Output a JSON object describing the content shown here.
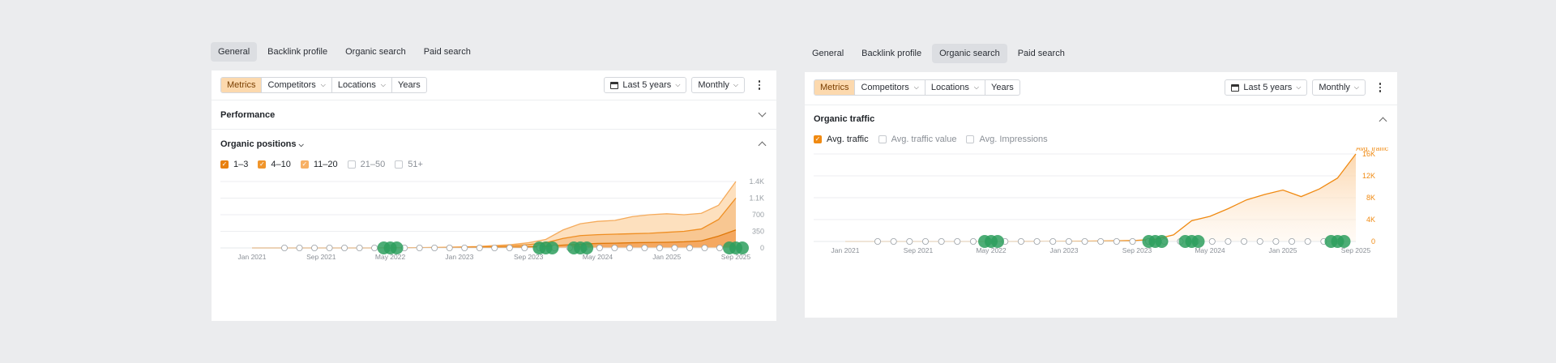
{
  "left": {
    "tabs": [
      "General",
      "Backlink profile",
      "Organic search",
      "Paid search"
    ],
    "active_tab": 0,
    "toolbar": {
      "segments": [
        "Metrics",
        "Competitors",
        "Locations",
        "Years"
      ],
      "period": "Last 5 years",
      "granularity": "Monthly"
    },
    "sections": {
      "performance": "Performance",
      "organic_positions": "Organic positions"
    },
    "legend": [
      {
        "label": "1–3",
        "checked": true,
        "color": "#e8800f"
      },
      {
        "label": "4–10",
        "checked": true,
        "color": "#f0952b"
      },
      {
        "label": "11–20",
        "checked": true,
        "color": "#f7b064"
      },
      {
        "label": "21–50",
        "checked": false,
        "color": ""
      },
      {
        "label": "51+",
        "checked": false,
        "color": ""
      }
    ]
  },
  "right": {
    "tabs": [
      "General",
      "Backlink profile",
      "Organic search",
      "Paid search"
    ],
    "active_tab": 2,
    "toolbar": {
      "segments": [
        "Metrics",
        "Competitors",
        "Locations",
        "Years"
      ],
      "period": "Last 5 years",
      "granularity": "Monthly"
    },
    "sections": {
      "organic_traffic": "Organic traffic"
    },
    "legend": [
      {
        "label": "Avg. traffic",
        "checked": true,
        "color": "#f08a12"
      },
      {
        "label": "Avg. traffic value",
        "checked": false,
        "color": ""
      },
      {
        "label": "Avg. Impressions",
        "checked": false,
        "color": ""
      }
    ]
  },
  "chart_data": [
    {
      "type": "area",
      "title": "",
      "x": [
        "Jan 2021",
        "Mar 2021",
        "May 2021",
        "Jul 2021",
        "Sep 2021",
        "Nov 2021",
        "Jan 2022",
        "Mar 2022",
        "May 2022",
        "Jul 2022",
        "Sep 2022",
        "Nov 2022",
        "Jan 2023",
        "Mar 2023",
        "May 2023",
        "Jul 2023",
        "Sep 2023",
        "Nov 2023",
        "Jan 2024",
        "Mar 2024",
        "May 2024",
        "Jul 2024",
        "Sep 2024",
        "Nov 2024",
        "Jan 2025",
        "Mar 2025",
        "May 2025",
        "Jul 2025",
        "Sep 2025"
      ],
      "x_tick_labels": [
        "Jan 2021",
        "Sep 2021",
        "May 2022",
        "Jan 2023",
        "Sep 2023",
        "May 2024",
        "Jan 2025",
        "Sep 2025"
      ],
      "y_ticks": [
        "0",
        "350",
        "700",
        "1.1K",
        "1.4K"
      ],
      "ylim": [
        0,
        1400
      ],
      "series": [
        {
          "name": "1–3",
          "values": [
            0,
            0,
            0,
            0,
            0,
            0,
            0,
            0,
            0,
            0,
            2,
            3,
            5,
            8,
            10,
            15,
            22,
            35,
            60,
            80,
            95,
            100,
            110,
            115,
            120,
            130,
            150,
            250,
            380
          ]
        },
        {
          "name": "4–10",
          "values": [
            0,
            0,
            0,
            0,
            0,
            0,
            0,
            0,
            2,
            3,
            5,
            8,
            12,
            20,
            30,
            45,
            70,
            110,
            200,
            260,
            280,
            290,
            300,
            310,
            330,
            350,
            400,
            600,
            1050
          ]
        },
        {
          "name": "11–20",
          "values": [
            0,
            0,
            0,
            0,
            0,
            0,
            0,
            0,
            3,
            5,
            8,
            12,
            20,
            30,
            50,
            70,
            110,
            180,
            380,
            510,
            560,
            580,
            660,
            700,
            720,
            700,
            730,
            900,
            1400
          ]
        }
      ],
      "markers": {
        "labels": [
          "G",
          "G",
          "G",
          "G",
          "G",
          "G",
          "G",
          "G",
          "G",
          "G",
          "G",
          "G",
          "G",
          "G",
          "G",
          "G",
          "G",
          "G",
          "G",
          "G",
          "G",
          "G",
          "G",
          "G",
          "G",
          "G",
          "G"
        ],
        "big": [
          "May 2022",
          "Nov 2023",
          "Mar 2024",
          "Sep 2025"
        ]
      }
    },
    {
      "type": "area",
      "title": "",
      "x": [
        "Jan 2021",
        "Mar 2021",
        "May 2021",
        "Jul 2021",
        "Sep 2021",
        "Nov 2021",
        "Jan 2022",
        "Mar 2022",
        "May 2022",
        "Jul 2022",
        "Sep 2022",
        "Nov 2022",
        "Jan 2023",
        "Mar 2023",
        "May 2023",
        "Jul 2023",
        "Sep 2023",
        "Nov 2023",
        "Jan 2024",
        "Mar 2024",
        "May 2024",
        "Jul 2024",
        "Sep 2024",
        "Nov 2024",
        "Jan 2025",
        "Mar 2025",
        "May 2025",
        "Jul 2025",
        "Sep 2025"
      ],
      "x_tick_labels": [
        "Jan 2021",
        "Sep 2021",
        "May 2022",
        "Jan 2023",
        "Sep 2023",
        "May 2024",
        "Jan 2025",
        "Sep 2025"
      ],
      "y_ticks": [
        "0",
        "4K",
        "8K",
        "12K",
        "16K"
      ],
      "ylim": [
        0,
        16000
      ],
      "series_label": "Avg. traffic",
      "series": [
        {
          "name": "Avg. traffic",
          "values": [
            0,
            0,
            0,
            0,
            0,
            0,
            0,
            0,
            0,
            0,
            10,
            20,
            30,
            50,
            80,
            120,
            200,
            400,
            1200,
            3800,
            4600,
            6000,
            7600,
            8600,
            9400,
            8200,
            9600,
            11600,
            16000
          ]
        }
      ],
      "markers": {
        "big": [
          "May 2022",
          "Nov 2023",
          "Mar 2024",
          "Jul 2025"
        ]
      }
    }
  ]
}
